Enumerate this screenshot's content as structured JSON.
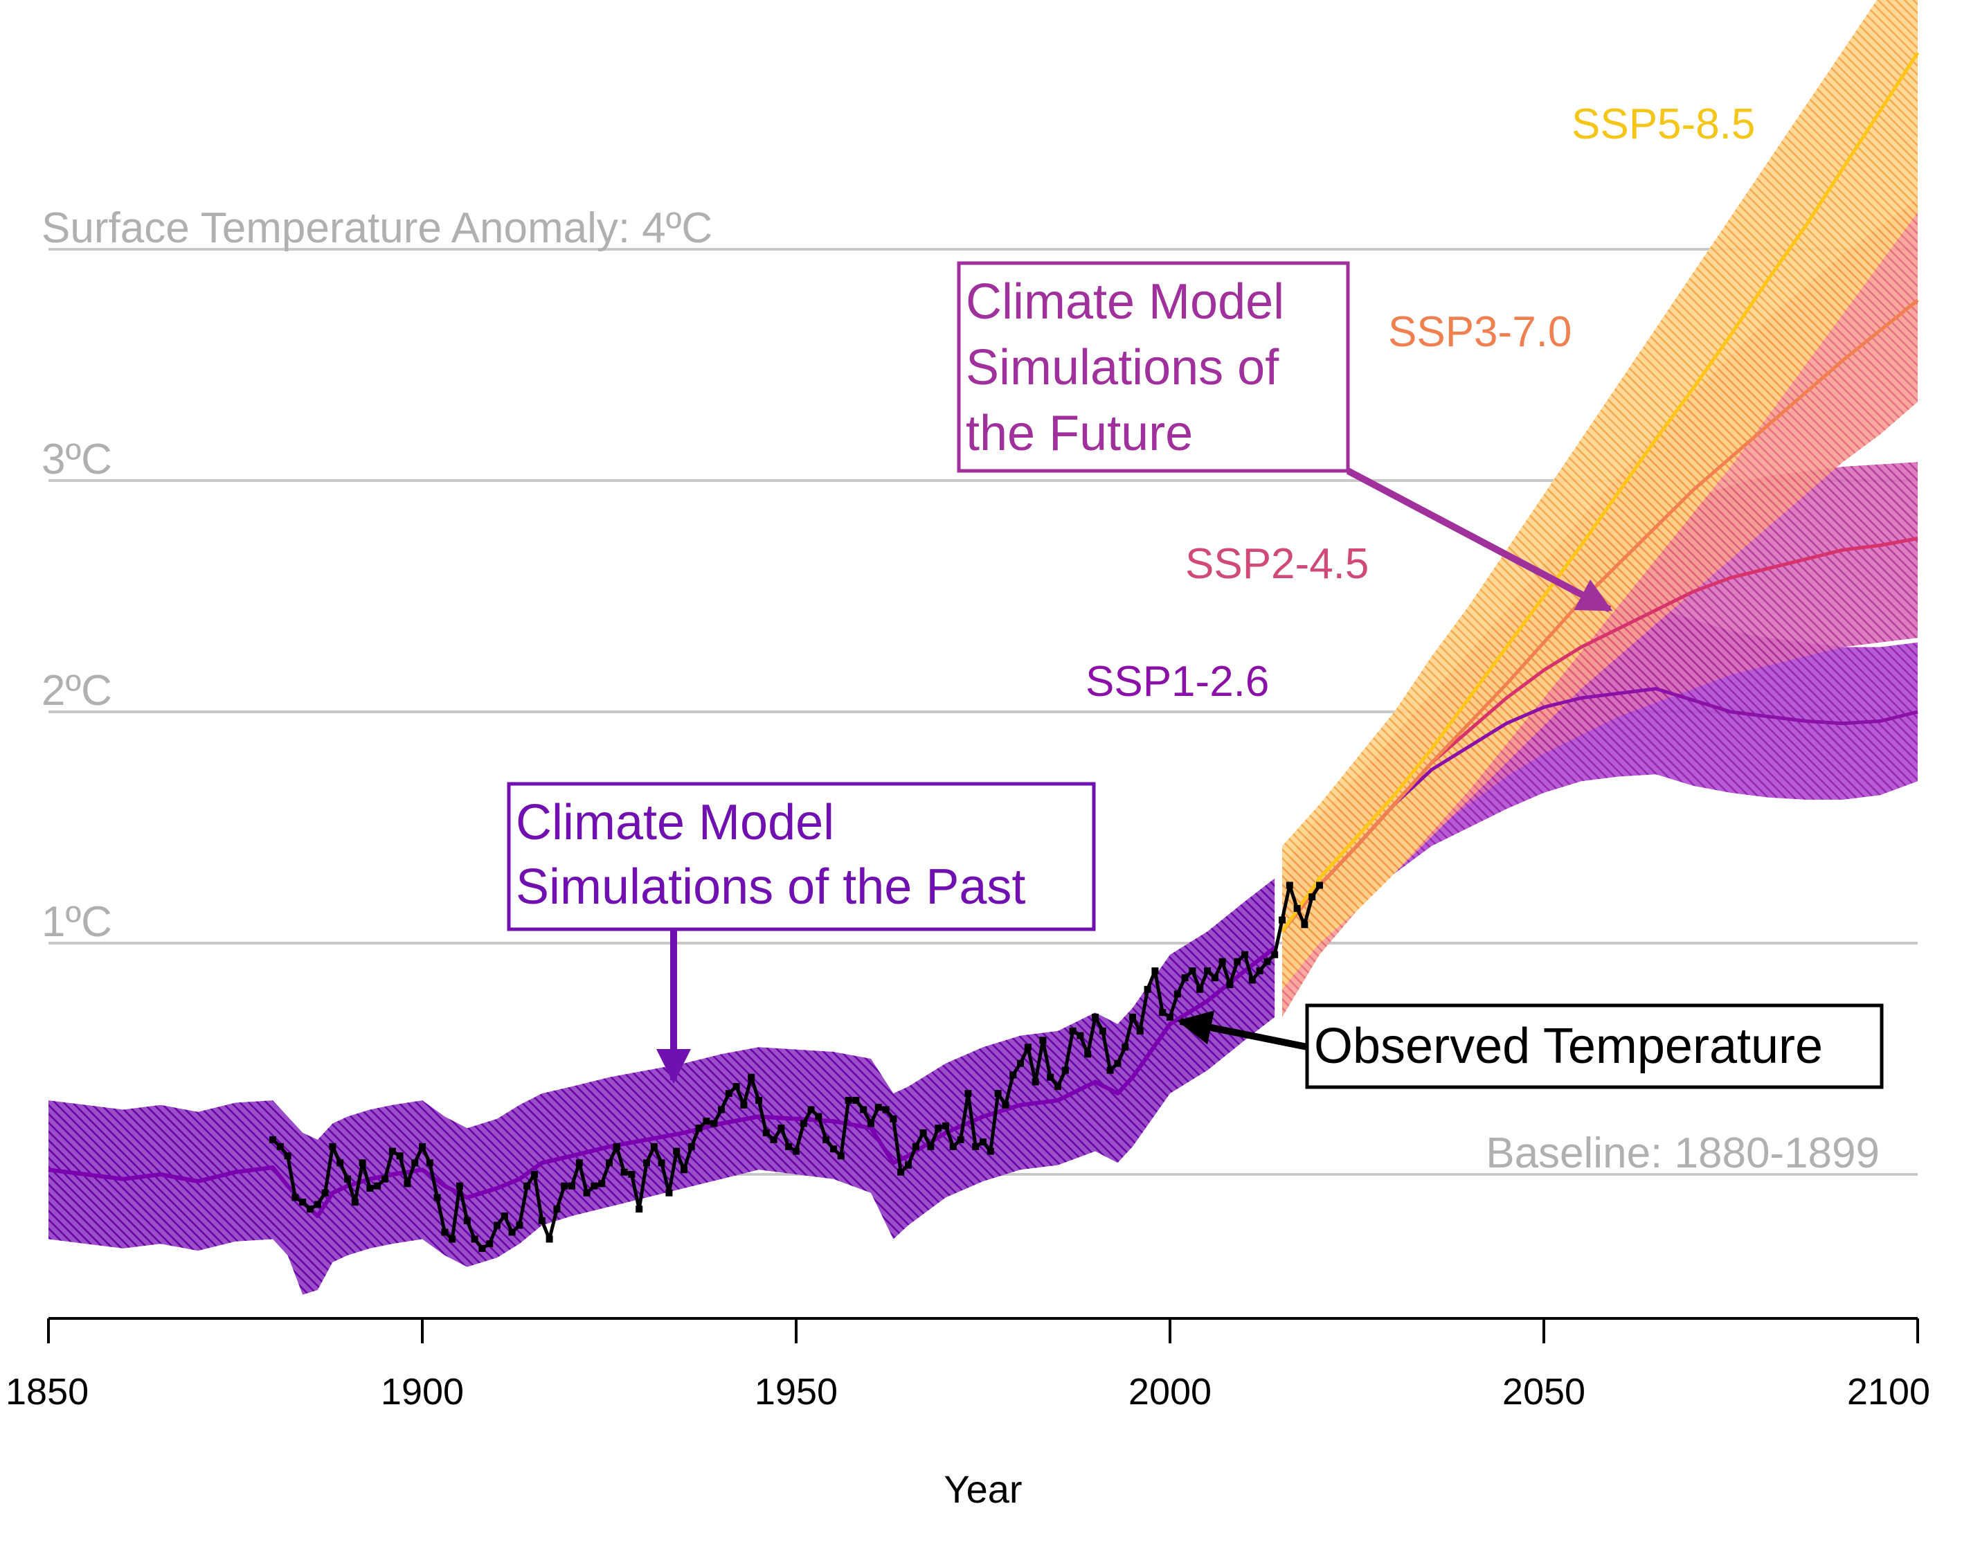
{
  "chart_data": {
    "type": "line",
    "xlabel": "Year",
    "ylabel": "",
    "xlim": [
      1850,
      2100
    ],
    "ylim": [
      -0.6,
      4.8
    ],
    "x_ticks": [
      1850,
      1900,
      1950,
      2000,
      2050,
      2100
    ],
    "y_gridlines": [
      {
        "value": 4,
        "label": "Surface Temperature Anomaly: 4ºC"
      },
      {
        "value": 3,
        "label": "3ºC"
      },
      {
        "value": 2,
        "label": "2ºC"
      },
      {
        "value": 1,
        "label": "1ºC"
      },
      {
        "value": 0,
        "label": "Baseline: 1880-1899"
      }
    ],
    "grid": true,
    "legend": "direct labels",
    "historical_model": {
      "color": "#7a00b0",
      "x": [
        1850,
        1855,
        1860,
        1865,
        1870,
        1875,
        1880,
        1882,
        1884,
        1886,
        1888,
        1890,
        1893,
        1896,
        1900,
        1903,
        1906,
        1910,
        1913,
        1916,
        1920,
        1925,
        1930,
        1935,
        1940,
        1945,
        1950,
        1955,
        1960,
        1963,
        1965,
        1970,
        1975,
        1980,
        1985,
        1990,
        1993,
        1995,
        2000,
        2005,
        2010,
        2014
      ],
      "mean": [
        0.02,
        0.0,
        -0.02,
        0.0,
        -0.03,
        0.01,
        0.03,
        -0.05,
        -0.12,
        -0.18,
        -0.08,
        -0.05,
        -0.02,
        0.0,
        0.02,
        -0.05,
        -0.1,
        -0.06,
        -0.02,
        0.05,
        0.08,
        0.12,
        0.15,
        0.18,
        0.22,
        0.25,
        0.24,
        0.23,
        0.2,
        0.05,
        0.08,
        0.18,
        0.25,
        0.3,
        0.32,
        0.4,
        0.35,
        0.42,
        0.65,
        0.75,
        0.88,
        0.98
      ],
      "lower": [
        -0.28,
        -0.3,
        -0.32,
        -0.3,
        -0.33,
        -0.29,
        -0.28,
        -0.35,
        -0.52,
        -0.5,
        -0.38,
        -0.35,
        -0.32,
        -0.3,
        -0.28,
        -0.35,
        -0.4,
        -0.36,
        -0.3,
        -0.22,
        -0.18,
        -0.14,
        -0.1,
        -0.06,
        -0.02,
        0.02,
        0.0,
        -0.02,
        -0.08,
        -0.28,
        -0.22,
        -0.1,
        -0.03,
        0.02,
        0.04,
        0.1,
        0.05,
        0.12,
        0.35,
        0.45,
        0.58,
        0.68
      ],
      "upper": [
        0.32,
        0.3,
        0.28,
        0.3,
        0.27,
        0.31,
        0.32,
        0.25,
        0.18,
        0.15,
        0.22,
        0.25,
        0.28,
        0.3,
        0.32,
        0.25,
        0.2,
        0.24,
        0.3,
        0.35,
        0.38,
        0.42,
        0.45,
        0.48,
        0.52,
        0.55,
        0.54,
        0.53,
        0.5,
        0.35,
        0.38,
        0.48,
        0.55,
        0.6,
        0.62,
        0.7,
        0.65,
        0.72,
        0.95,
        1.05,
        1.18,
        1.28
      ]
    },
    "series": [
      {
        "name": "SSP1-2.6",
        "color": "#8a10a8",
        "x": [
          2015,
          2020,
          2025,
          2030,
          2035,
          2040,
          2045,
          2050,
          2055,
          2060,
          2065,
          2070,
          2075,
          2080,
          2085,
          2090,
          2095,
          2100
        ],
        "mean": [
          1.05,
          1.25,
          1.42,
          1.6,
          1.75,
          1.85,
          1.95,
          2.02,
          2.06,
          2.08,
          2.1,
          2.05,
          2.0,
          1.98,
          1.96,
          1.95,
          1.96,
          2.0
        ],
        "lower": [
          0.85,
          1.02,
          1.16,
          1.3,
          1.42,
          1.5,
          1.58,
          1.65,
          1.7,
          1.72,
          1.73,
          1.68,
          1.65,
          1.63,
          1.62,
          1.62,
          1.64,
          1.7
        ],
        "upper": [
          1.25,
          1.48,
          1.68,
          1.9,
          2.08,
          2.2,
          2.3,
          2.38,
          2.42,
          2.44,
          2.45,
          2.4,
          2.35,
          2.32,
          2.3,
          2.28,
          2.28,
          2.3
        ]
      },
      {
        "name": "SSP2-4.5",
        "color": "#d6336c",
        "x": [
          2015,
          2020,
          2025,
          2030,
          2035,
          2040,
          2045,
          2050,
          2055,
          2060,
          2065,
          2070,
          2075,
          2080,
          2085,
          2090,
          2095,
          2100
        ],
        "mean": [
          1.05,
          1.25,
          1.42,
          1.6,
          1.78,
          1.92,
          2.06,
          2.18,
          2.28,
          2.36,
          2.44,
          2.52,
          2.58,
          2.62,
          2.66,
          2.7,
          2.72,
          2.75
        ],
        "lower": [
          0.85,
          1.02,
          1.16,
          1.32,
          1.48,
          1.6,
          1.72,
          1.82,
          1.9,
          1.98,
          2.04,
          2.1,
          2.16,
          2.2,
          2.24,
          2.28,
          2.3,
          2.32
        ],
        "upper": [
          1.25,
          1.48,
          1.68,
          1.88,
          2.08,
          2.24,
          2.4,
          2.54,
          2.66,
          2.76,
          2.84,
          2.92,
          2.98,
          3.02,
          3.04,
          3.06,
          3.07,
          3.08
        ]
      },
      {
        "name": "SSP3-7.0",
        "color": "#f08050",
        "x": [
          2015,
          2020,
          2025,
          2030,
          2035,
          2040,
          2045,
          2050,
          2055,
          2060,
          2065,
          2070,
          2075,
          2080,
          2085,
          2090,
          2095,
          2100
        ],
        "mean": [
          1.05,
          1.25,
          1.42,
          1.6,
          1.78,
          1.95,
          2.12,
          2.3,
          2.48,
          2.64,
          2.8,
          2.96,
          3.1,
          3.24,
          3.38,
          3.52,
          3.65,
          3.78
        ],
        "lower": [
          0.68,
          0.95,
          1.14,
          1.3,
          1.46,
          1.62,
          1.78,
          1.94,
          2.1,
          2.24,
          2.38,
          2.52,
          2.66,
          2.8,
          2.94,
          3.08,
          3.2,
          3.34
        ],
        "upper": [
          1.32,
          1.55,
          1.72,
          1.9,
          2.08,
          2.26,
          2.44,
          2.64,
          2.84,
          3.02,
          3.2,
          3.38,
          3.54,
          3.7,
          3.84,
          3.98,
          4.1,
          4.22
        ]
      },
      {
        "name": "SSP5-8.5",
        "color": "#ffc61a",
        "x": [
          2015,
          2020,
          2025,
          2030,
          2035,
          2040,
          2045,
          2050,
          2055,
          2060,
          2065,
          2070,
          2075,
          2080,
          2085,
          2090,
          2095,
          2100
        ],
        "mean": [
          1.05,
          1.28,
          1.46,
          1.64,
          1.84,
          2.06,
          2.28,
          2.5,
          2.72,
          2.95,
          3.18,
          3.4,
          3.63,
          3.87,
          4.1,
          4.35,
          4.6,
          4.85
        ],
        "lower": [
          0.8,
          1.0,
          1.14,
          1.3,
          1.48,
          1.66,
          1.86,
          2.06,
          2.26,
          2.46,
          2.66,
          2.86,
          3.06,
          3.28,
          3.5,
          3.72,
          3.94,
          4.16
        ],
        "upper": [
          1.42,
          1.6,
          1.8,
          2.0,
          2.24,
          2.46,
          2.7,
          2.94,
          3.18,
          3.42,
          3.66,
          3.9,
          4.14,
          4.38,
          4.62,
          4.86,
          5.1,
          5.34
        ]
      }
    ],
    "observed": {
      "name": "Observed Temperature",
      "color": "#000000",
      "x": [
        1880,
        1881,
        1882,
        1883,
        1884,
        1885,
        1886,
        1887,
        1888,
        1889,
        1890,
        1891,
        1892,
        1893,
        1894,
        1895,
        1896,
        1897,
        1898,
        1899,
        1900,
        1901,
        1902,
        1903,
        1904,
        1905,
        1906,
        1907,
        1908,
        1909,
        1910,
        1911,
        1912,
        1913,
        1914,
        1915,
        1916,
        1917,
        1918,
        1919,
        1920,
        1921,
        1922,
        1923,
        1924,
        1925,
        1926,
        1927,
        1928,
        1929,
        1930,
        1931,
        1932,
        1933,
        1934,
        1935,
        1936,
        1937,
        1938,
        1939,
        1940,
        1941,
        1942,
        1943,
        1944,
        1945,
        1946,
        1947,
        1948,
        1949,
        1950,
        1951,
        1952,
        1953,
        1954,
        1955,
        1956,
        1957,
        1958,
        1959,
        1960,
        1961,
        1962,
        1963,
        1964,
        1965,
        1966,
        1967,
        1968,
        1969,
        1970,
        1971,
        1972,
        1973,
        1974,
        1975,
        1976,
        1977,
        1978,
        1979,
        1980,
        1981,
        1982,
        1983,
        1984,
        1985,
        1986,
        1987,
        1988,
        1989,
        1990,
        1991,
        1992,
        1993,
        1994,
        1995,
        1996,
        1997,
        1998,
        1999,
        2000,
        2001,
        2002,
        2003,
        2004,
        2005,
        2006,
        2007,
        2008,
        2009,
        2010,
        2011,
        2012,
        2013,
        2014,
        2015,
        2016,
        2017,
        2018,
        2019,
        2020
      ],
      "y": [
        0.15,
        0.12,
        0.08,
        -0.1,
        -0.12,
        -0.15,
        -0.13,
        -0.08,
        0.12,
        0.05,
        -0.02,
        -0.12,
        0.05,
        -0.06,
        -0.05,
        -0.02,
        0.1,
        0.08,
        -0.04,
        0.05,
        0.12,
        0.05,
        -0.1,
        -0.25,
        -0.28,
        -0.05,
        -0.2,
        -0.28,
        -0.32,
        -0.3,
        -0.22,
        -0.18,
        -0.25,
        -0.22,
        -0.05,
        0.0,
        -0.2,
        -0.28,
        -0.15,
        -0.05,
        -0.05,
        0.05,
        -0.08,
        -0.05,
        -0.04,
        0.05,
        0.12,
        0.01,
        0.0,
        -0.15,
        0.05,
        0.12,
        0.05,
        -0.08,
        0.1,
        0.02,
        0.12,
        0.2,
        0.23,
        0.22,
        0.28,
        0.35,
        0.38,
        0.3,
        0.42,
        0.32,
        0.18,
        0.15,
        0.2,
        0.12,
        0.1,
        0.22,
        0.28,
        0.25,
        0.15,
        0.11,
        0.08,
        0.32,
        0.32,
        0.28,
        0.22,
        0.29,
        0.28,
        0.24,
        0.01,
        0.04,
        0.12,
        0.18,
        0.12,
        0.2,
        0.21,
        0.12,
        0.15,
        0.35,
        0.12,
        0.14,
        0.1,
        0.35,
        0.3,
        0.43,
        0.48,
        0.55,
        0.4,
        0.58,
        0.42,
        0.38,
        0.45,
        0.62,
        0.6,
        0.52,
        0.68,
        0.62,
        0.45,
        0.48,
        0.55,
        0.68,
        0.62,
        0.8,
        0.88,
        0.7,
        0.68,
        0.78,
        0.85,
        0.88,
        0.8,
        0.88,
        0.85,
        0.92,
        0.82,
        0.92,
        0.95,
        0.84,
        0.88,
        0.92,
        0.95,
        1.1,
        1.25,
        1.15,
        1.08,
        1.2,
        1.25
      ]
    },
    "labels": [
      {
        "text": "SSP5-8.5",
        "color": "#f5c518"
      },
      {
        "text": "SSP3-7.0",
        "color": "#f08050"
      },
      {
        "text": "SSP2-4.5",
        "color": "#d04a78"
      },
      {
        "text": "SSP1-2.6",
        "color": "#8a10a8"
      }
    ],
    "annotations": [
      {
        "lines": [
          "Climate Model",
          "Simulations of",
          "the Future"
        ],
        "color": "#a0309c"
      },
      {
        "lines": [
          "Climate Model",
          "Simulations of the Past"
        ],
        "color": "#7010b0"
      },
      {
        "lines": [
          "Observed Temperature"
        ],
        "color": "#000000"
      }
    ],
    "colors": {
      "grid": "#c8c8c8",
      "grid_label": "#b0b0b0",
      "axis": "#000000"
    }
  }
}
